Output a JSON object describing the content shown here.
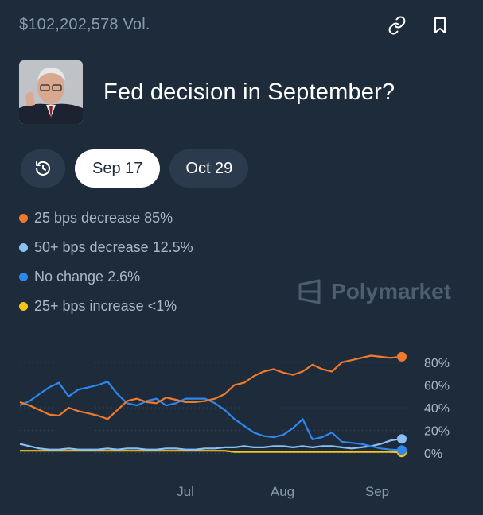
{
  "header": {
    "volume": "$102,202,578 Vol."
  },
  "market": {
    "title": "Fed decision in September?"
  },
  "tabs": {
    "dates": [
      "Sep 17",
      "Oct 29"
    ],
    "active": "Sep 17"
  },
  "legend": [
    {
      "label": "25 bps decrease 85%",
      "color": "#f07a2c"
    },
    {
      "label": "50+ bps decrease 12.5%",
      "color": "#8cc0f5"
    },
    {
      "label": "No change 2.6%",
      "color": "#2f86ee"
    },
    {
      "label": "25+ bps increase <1%",
      "color": "#f5c518"
    }
  ],
  "brand": {
    "name": "Polymarket"
  },
  "chart_data": {
    "type": "line",
    "x_ticks": [
      "Jul",
      "Aug",
      "Sep"
    ],
    "y_ticks": [
      "80%",
      "60%",
      "40%",
      "20%",
      "0%"
    ],
    "ylim": [
      0,
      100
    ],
    "grid": true,
    "series": [
      {
        "name": "25 bps decrease",
        "color": "#f07a2c",
        "values": [
          45,
          42,
          38,
          34,
          33,
          40,
          37,
          35,
          33,
          30,
          38,
          46,
          48,
          45,
          44,
          49,
          47,
          45,
          45,
          46,
          48,
          52,
          60,
          62,
          68,
          72,
          74,
          71,
          69,
          72,
          78,
          74,
          72,
          80,
          82,
          84,
          86,
          85,
          84,
          85
        ]
      },
      {
        "name": "No change",
        "color": "#2f86ee",
        "values": [
          42,
          46,
          52,
          58,
          62,
          50,
          56,
          58,
          60,
          63,
          52,
          44,
          42,
          46,
          48,
          42,
          44,
          48,
          48,
          48,
          44,
          38,
          30,
          24,
          18,
          15,
          14,
          16,
          22,
          30,
          12,
          14,
          18,
          10,
          9,
          8,
          6,
          4,
          3,
          2.6
        ]
      },
      {
        "name": "50+ bps decrease",
        "color": "#8cc0f5",
        "values": [
          8,
          6,
          4,
          3,
          3,
          4,
          3,
          3,
          3,
          4,
          3,
          4,
          4,
          3,
          3,
          4,
          4,
          3,
          3,
          4,
          4,
          5,
          5,
          6,
          5,
          5,
          6,
          6,
          5,
          6,
          5,
          6,
          6,
          5,
          4,
          5,
          6,
          8,
          11,
          12.5
        ]
      },
      {
        "name": "25+ bps increase",
        "color": "#f5c518",
        "values": [
          2,
          2,
          2,
          2,
          2,
          2,
          2,
          2,
          2,
          2,
          2,
          2,
          2,
          2,
          2,
          2,
          2,
          2,
          2,
          2,
          2,
          2,
          1,
          1,
          1,
          1,
          1,
          1,
          1,
          1,
          1,
          1,
          1,
          1,
          1,
          1,
          1,
          1,
          1,
          0.5
        ]
      }
    ]
  }
}
